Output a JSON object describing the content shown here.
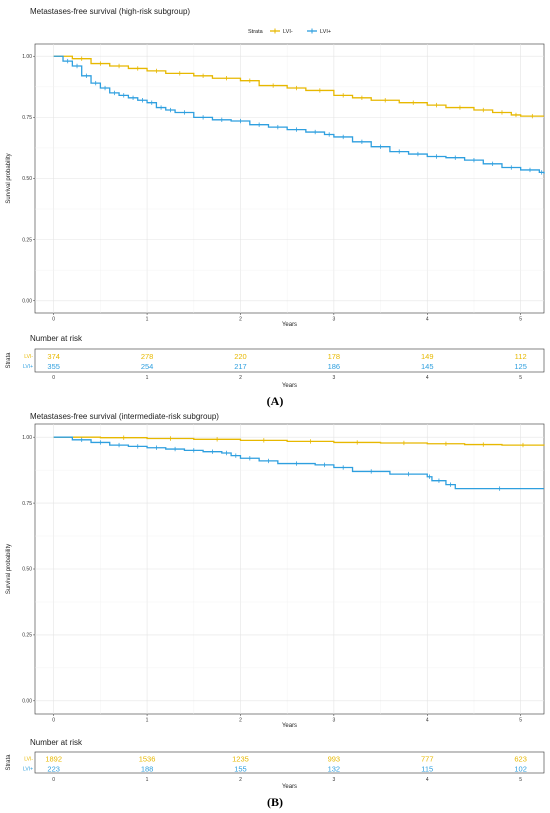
{
  "chart_data": [
    {
      "type": "line",
      "title": "Metastases-free survival (high-risk subgroup)",
      "xlabel": "Years",
      "ylabel": "Survival probability",
      "xlim": [
        -0.2,
        5.25
      ],
      "ylim": [
        -0.05,
        1.05
      ],
      "x_ticks": [
        "0",
        "1",
        "2",
        "3",
        "4",
        "5"
      ],
      "y_ticks": [
        "0.00",
        "0.25",
        "0.50",
        "0.75",
        "1.00"
      ],
      "legend": {
        "title": "Strata",
        "placement": "top"
      },
      "grid": true,
      "series": [
        {
          "name": "LVI-",
          "color": "#E7B800",
          "x": [
            0,
            0.2,
            0.4,
            0.6,
            0.8,
            1.0,
            1.2,
            1.5,
            1.7,
            2.0,
            2.2,
            2.5,
            2.7,
            3.0,
            3.2,
            3.4,
            3.7,
            4.0,
            4.2,
            4.5,
            4.7,
            4.9,
            5.0,
            5.25
          ],
          "y": [
            1.0,
            0.99,
            0.97,
            0.96,
            0.95,
            0.94,
            0.93,
            0.92,
            0.91,
            0.9,
            0.88,
            0.87,
            0.86,
            0.84,
            0.83,
            0.82,
            0.81,
            0.8,
            0.79,
            0.78,
            0.77,
            0.76,
            0.755,
            0.755
          ]
        },
        {
          "name": "LVI+",
          "color": "#2E9FDF",
          "x": [
            0,
            0.1,
            0.2,
            0.3,
            0.4,
            0.5,
            0.6,
            0.7,
            0.8,
            0.9,
            1.0,
            1.1,
            1.2,
            1.3,
            1.5,
            1.7,
            1.9,
            2.1,
            2.3,
            2.5,
            2.7,
            2.9,
            3.0,
            3.2,
            3.4,
            3.6,
            3.8,
            4.0,
            4.2,
            4.4,
            4.6,
            4.8,
            5.0,
            5.2,
            5.25
          ],
          "y": [
            1.0,
            0.98,
            0.96,
            0.92,
            0.89,
            0.87,
            0.85,
            0.84,
            0.83,
            0.82,
            0.81,
            0.79,
            0.78,
            0.77,
            0.75,
            0.74,
            0.735,
            0.72,
            0.71,
            0.7,
            0.69,
            0.68,
            0.67,
            0.65,
            0.63,
            0.61,
            0.6,
            0.59,
            0.585,
            0.575,
            0.56,
            0.545,
            0.535,
            0.525,
            0.52
          ]
        }
      ],
      "risk_table": {
        "title": "Number at risk",
        "y_label": "Strata",
        "xlabel": "Years",
        "rows": [
          {
            "name": "LVI-",
            "color": "#E7B800",
            "values": [
              "374",
              "278",
              "220",
              "178",
              "149",
              "112"
            ]
          },
          {
            "name": "LVI+",
            "color": "#2E9FDF",
            "values": [
              "355",
              "254",
              "217",
              "186",
              "145",
              "125"
            ]
          }
        ]
      },
      "panel_label": "(A)"
    },
    {
      "type": "line",
      "title": "Metastases-free survival (intermediate-risk subgroup)",
      "xlabel": "Years",
      "ylabel": "Survival probability",
      "xlim": [
        -0.2,
        5.25
      ],
      "ylim": [
        -0.05,
        1.05
      ],
      "x_ticks": [
        "0",
        "1",
        "2",
        "3",
        "4",
        "5"
      ],
      "y_ticks": [
        "0.00",
        "0.25",
        "0.50",
        "0.75",
        "1.00"
      ],
      "legend": {
        "title": "Strata",
        "placement": "top"
      },
      "grid": true,
      "series": [
        {
          "name": "LVI-",
          "color": "#E7B800",
          "x": [
            0,
            0.5,
            1.0,
            1.5,
            2.0,
            2.5,
            3.0,
            3.5,
            4.0,
            4.4,
            4.8,
            5.25
          ],
          "y": [
            1.0,
            0.998,
            0.995,
            0.992,
            0.988,
            0.984,
            0.98,
            0.978,
            0.975,
            0.972,
            0.97,
            0.968
          ]
        },
        {
          "name": "LVI+",
          "color": "#2E9FDF",
          "x": [
            0,
            0.2,
            0.4,
            0.6,
            0.8,
            1.0,
            1.2,
            1.4,
            1.6,
            1.8,
            1.9,
            2.0,
            2.2,
            2.4,
            2.8,
            3.0,
            3.2,
            3.6,
            4.0,
            4.05,
            4.2,
            4.3,
            5.25
          ],
          "y": [
            1.0,
            0.99,
            0.98,
            0.97,
            0.965,
            0.96,
            0.955,
            0.95,
            0.945,
            0.94,
            0.93,
            0.92,
            0.91,
            0.9,
            0.895,
            0.885,
            0.87,
            0.86,
            0.85,
            0.835,
            0.82,
            0.805,
            0.805
          ]
        }
      ],
      "risk_table": {
        "title": "Number at risk",
        "y_label": "Strata",
        "xlabel": "Years",
        "rows": [
          {
            "name": "LVI-",
            "color": "#E7B800",
            "values": [
              "1892",
              "1536",
              "1235",
              "993",
              "777",
              "623"
            ]
          },
          {
            "name": "LVI+",
            "color": "#2E9FDF",
            "values": [
              "223",
              "188",
              "155",
              "132",
              "115",
              "102"
            ]
          }
        ]
      },
      "panel_label": "(B)"
    }
  ]
}
